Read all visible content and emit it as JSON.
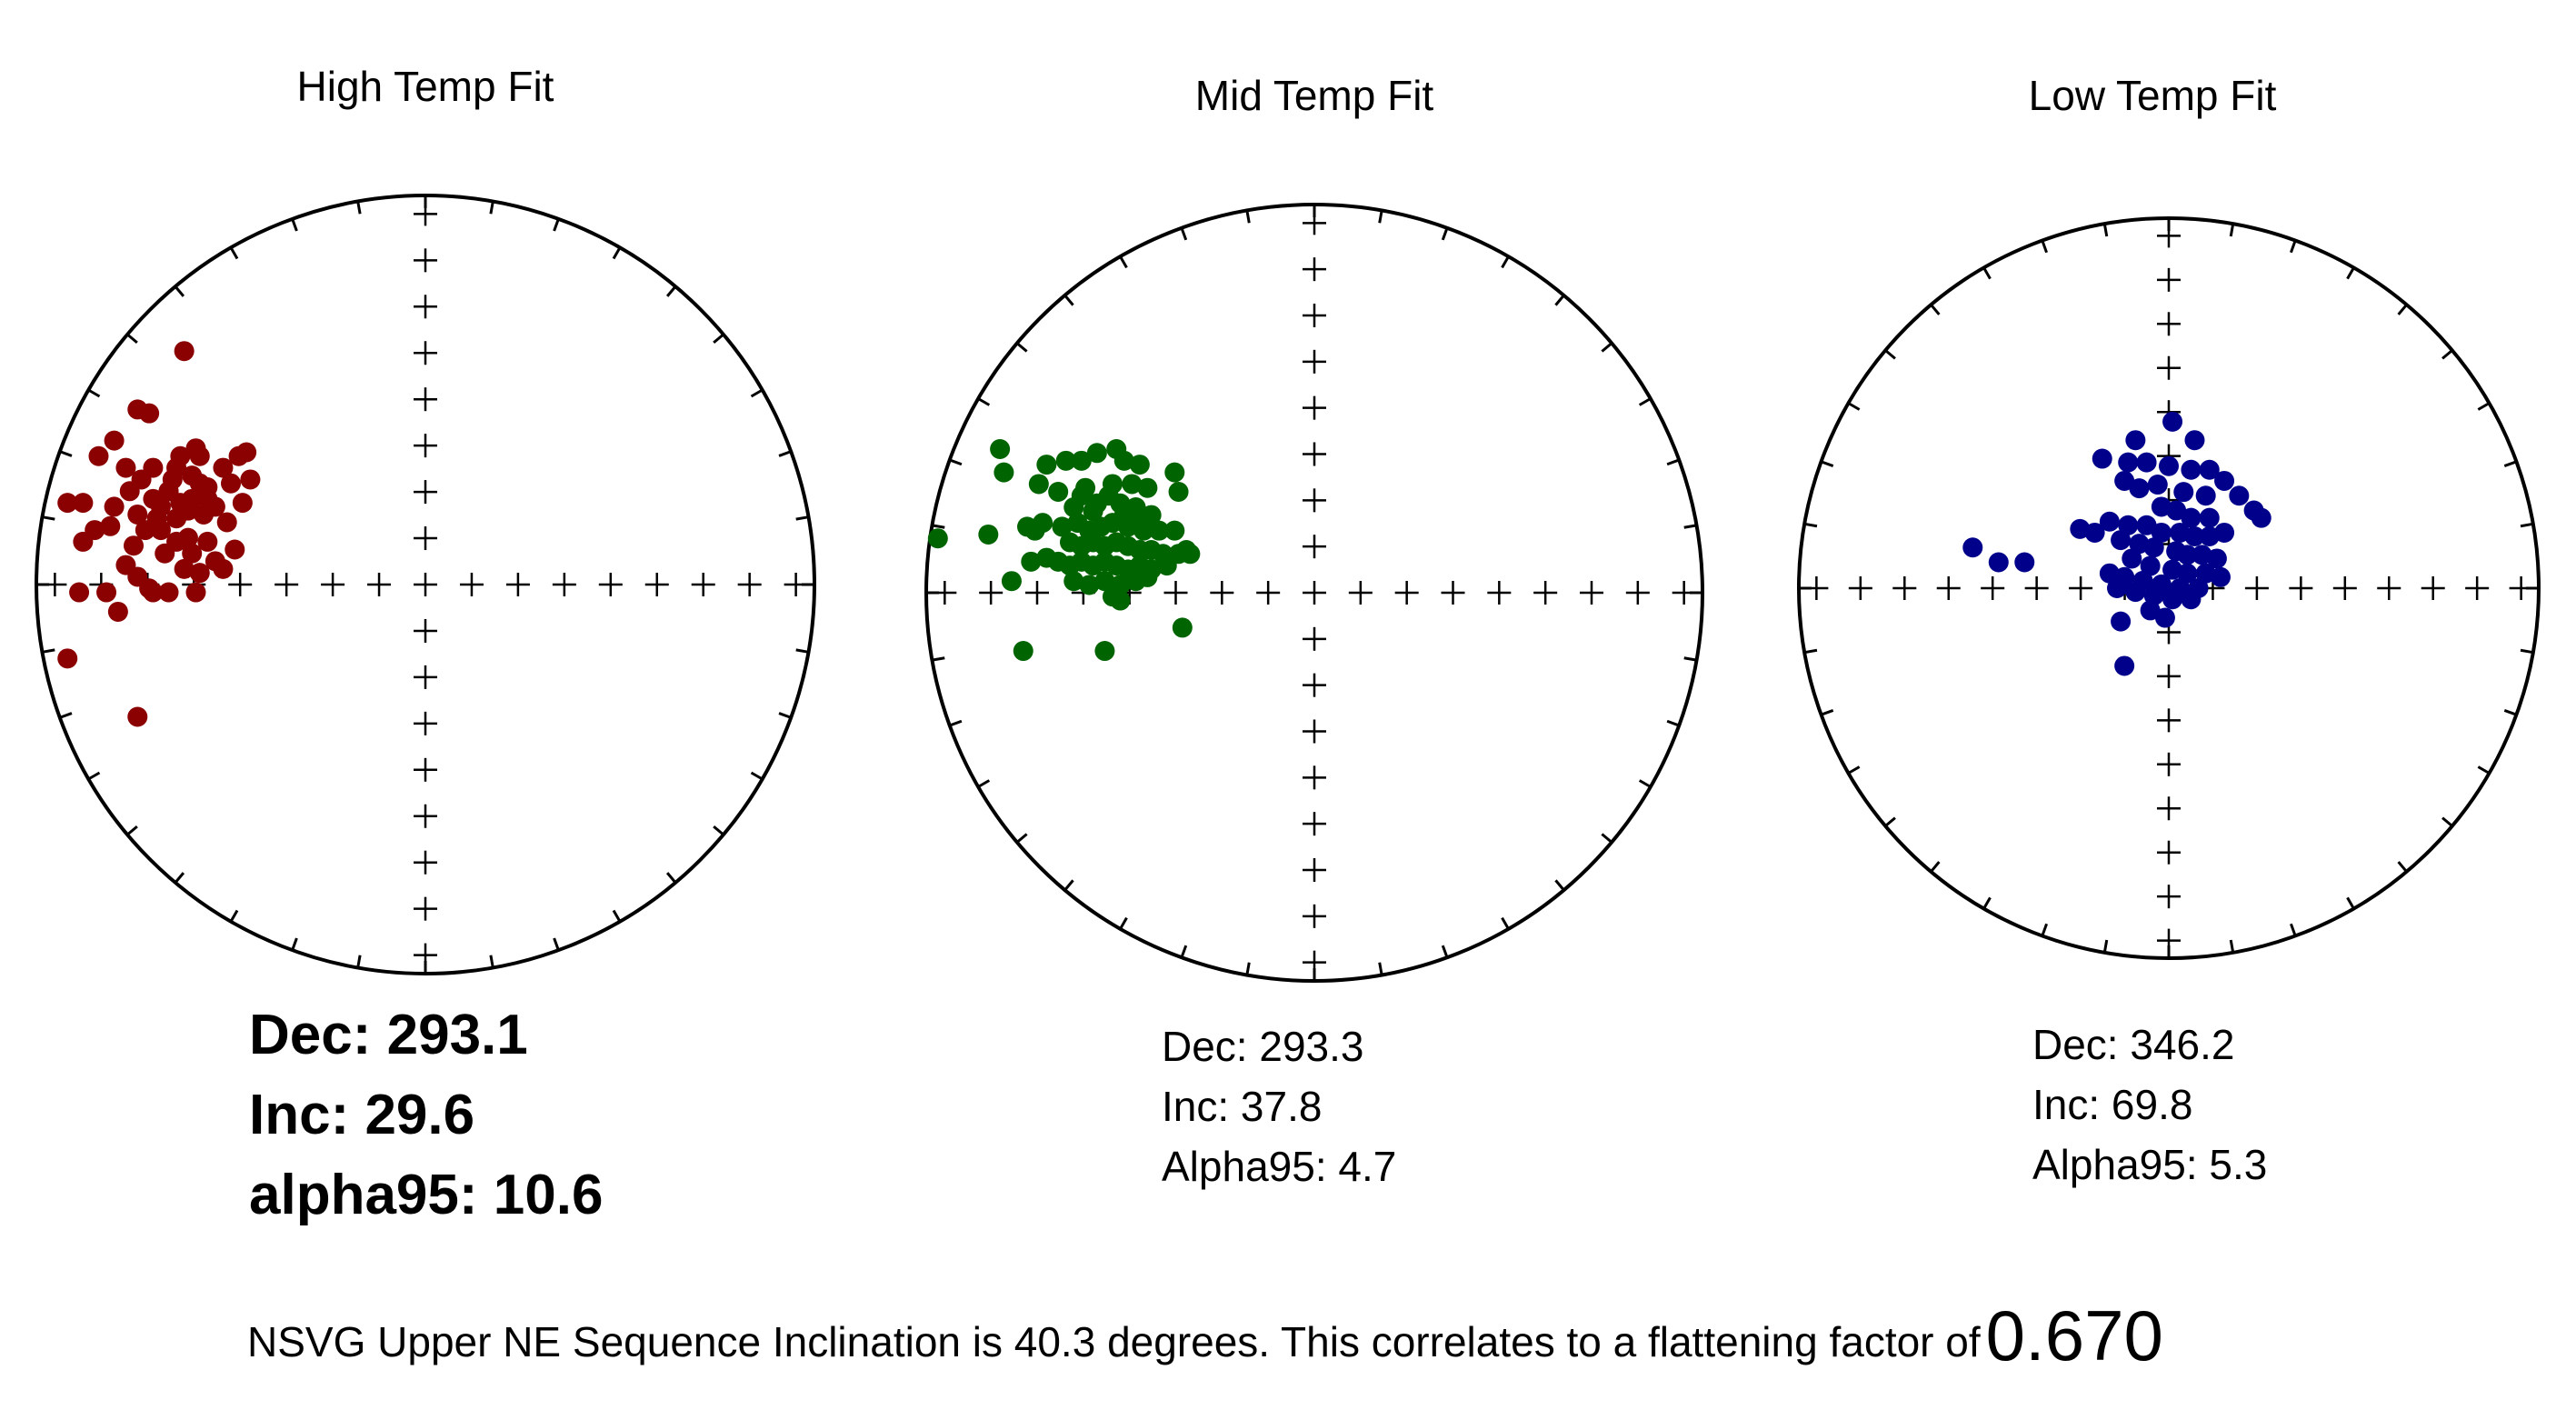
{
  "chart_data": [
    {
      "type": "scatter",
      "projection": "equal-area stereonet",
      "title": "High Temp Fit",
      "color": "#8B0000",
      "stats": {
        "dec_label": "Dec: 293.1",
        "inc_label": "Inc: 29.6",
        "alpha_label": "alpha95: 10.6"
      },
      "points": [
        [
          -0.62,
          0.6
        ],
        [
          -0.74,
          0.45
        ],
        [
          -0.71,
          0.44
        ],
        [
          -0.8,
          0.37
        ],
        [
          -0.84,
          0.33
        ],
        [
          -0.63,
          0.33
        ],
        [
          -0.58,
          0.33
        ],
        [
          -0.59,
          0.35
        ],
        [
          -0.58,
          0.26
        ],
        [
          -0.6,
          0.28
        ],
        [
          -0.65,
          0.27
        ],
        [
          -0.52,
          0.3
        ],
        [
          -0.56,
          0.25
        ],
        [
          -0.5,
          0.26
        ],
        [
          -0.48,
          0.33
        ],
        [
          -0.46,
          0.34
        ],
        [
          -0.45,
          0.27
        ],
        [
          -0.47,
          0.21
        ],
        [
          -0.92,
          0.21
        ],
        [
          -0.88,
          0.21
        ],
        [
          -0.76,
          0.24
        ],
        [
          -0.8,
          0.2
        ],
        [
          -0.7,
          0.22
        ],
        [
          -0.73,
          0.27
        ],
        [
          -0.77,
          0.3
        ],
        [
          -0.7,
          0.3
        ],
        [
          -0.66,
          0.24
        ],
        [
          -0.63,
          0.21
        ],
        [
          -0.68,
          0.2
        ],
        [
          -0.72,
          0.14
        ],
        [
          -0.75,
          0.1
        ],
        [
          -0.81,
          0.15
        ],
        [
          -0.85,
          0.14
        ],
        [
          -0.88,
          0.11
        ],
        [
          -0.77,
          0.05
        ],
        [
          -0.74,
          0.02
        ],
        [
          -0.67,
          0.08
        ],
        [
          -0.68,
          0.14
        ],
        [
          -0.64,
          0.17
        ],
        [
          -0.61,
          0.19
        ],
        [
          -0.57,
          0.18
        ],
        [
          -0.54,
          0.2
        ],
        [
          -0.51,
          0.16
        ],
        [
          -0.56,
          0.11
        ],
        [
          -0.6,
          0.08
        ],
        [
          -0.64,
          0.11
        ],
        [
          -0.62,
          0.04
        ],
        [
          -0.58,
          0.03
        ],
        [
          -0.54,
          0.06
        ],
        [
          -0.49,
          0.09
        ],
        [
          -0.52,
          0.04
        ],
        [
          -0.59,
          -0.02
        ],
        [
          -0.66,
          -0.02
        ],
        [
          -0.71,
          -0.01
        ],
        [
          -0.82,
          -0.02
        ],
        [
          -0.89,
          -0.02
        ],
        [
          -0.79,
          -0.07
        ],
        [
          -0.7,
          -0.02
        ],
        [
          -0.66,
          0.24
        ],
        [
          -0.6,
          0.22
        ],
        [
          -0.64,
          0.3
        ],
        [
          -0.56,
          0.22
        ],
        [
          -0.69,
          0.17
        ],
        [
          -0.74,
          0.18
        ],
        [
          -0.61,
          0.12
        ],
        [
          -0.92,
          -0.19
        ],
        [
          -0.74,
          -0.34
        ]
      ]
    },
    {
      "type": "scatter",
      "projection": "equal-area stereonet",
      "title": "Mid Temp Fit",
      "color": "#006400",
      "stats": {
        "dec_label": "Dec: 293.3",
        "inc_label": "Inc: 37.8",
        "alpha_label": "Alpha95: 4.7"
      },
      "points": [
        [
          -0.81,
          0.37
        ],
        [
          -0.8,
          0.31
        ],
        [
          -0.69,
          0.33
        ],
        [
          -0.64,
          0.34
        ],
        [
          -0.6,
          0.34
        ],
        [
          -0.56,
          0.36
        ],
        [
          -0.51,
          0.37
        ],
        [
          -0.49,
          0.34
        ],
        [
          -0.45,
          0.33
        ],
        [
          -0.36,
          0.31
        ],
        [
          -0.35,
          0.26
        ],
        [
          -0.71,
          0.28
        ],
        [
          -0.66,
          0.26
        ],
        [
          -0.59,
          0.27
        ],
        [
          -0.52,
          0.28
        ],
        [
          -0.47,
          0.28
        ],
        [
          -0.43,
          0.27
        ],
        [
          -0.62,
          0.22
        ],
        [
          -0.56,
          0.23
        ],
        [
          -0.5,
          0.23
        ],
        [
          -0.46,
          0.22
        ],
        [
          -0.42,
          0.2
        ],
        [
          -0.65,
          0.17
        ],
        [
          -0.61,
          0.18
        ],
        [
          -0.58,
          0.16
        ],
        [
          -0.55,
          0.17
        ],
        [
          -0.52,
          0.18
        ],
        [
          -0.48,
          0.17
        ],
        [
          -0.44,
          0.16
        ],
        [
          -0.4,
          0.16
        ],
        [
          -0.36,
          0.16
        ],
        [
          -0.33,
          0.11
        ],
        [
          -0.35,
          0.1
        ],
        [
          -0.32,
          0.1
        ],
        [
          -0.7,
          0.18
        ],
        [
          -0.72,
          0.16
        ],
        [
          -0.74,
          0.17
        ],
        [
          -0.84,
          0.15
        ],
        [
          -0.97,
          0.14
        ],
        [
          -0.63,
          0.13
        ],
        [
          -0.6,
          0.12
        ],
        [
          -0.57,
          0.13
        ],
        [
          -0.54,
          0.12
        ],
        [
          -0.51,
          0.13
        ],
        [
          -0.48,
          0.12
        ],
        [
          -0.45,
          0.11
        ],
        [
          -0.42,
          0.11
        ],
        [
          -0.39,
          0.1
        ],
        [
          -0.69,
          0.09
        ],
        [
          -0.66,
          0.08
        ],
        [
          -0.63,
          0.07
        ],
        [
          -0.6,
          0.08
        ],
        [
          -0.57,
          0.07
        ],
        [
          -0.54,
          0.08
        ],
        [
          -0.51,
          0.07
        ],
        [
          -0.48,
          0.06
        ],
        [
          -0.45,
          0.07
        ],
        [
          -0.42,
          0.06
        ],
        [
          -0.38,
          0.07
        ],
        [
          -0.73,
          0.08
        ],
        [
          -0.62,
          0.03
        ],
        [
          -0.58,
          0.02
        ],
        [
          -0.54,
          0.03
        ],
        [
          -0.5,
          0.02
        ],
        [
          -0.46,
          0.03
        ],
        [
          -0.43,
          0.04
        ],
        [
          -0.52,
          -0.01
        ],
        [
          -0.5,
          -0.02
        ],
        [
          -0.57,
          0.21
        ],
        [
          -0.6,
          0.25
        ],
        [
          -0.53,
          0.25
        ],
        [
          -0.49,
          0.2
        ],
        [
          -0.46,
          0.19
        ],
        [
          -0.78,
          0.03
        ],
        [
          -0.34,
          -0.09
        ],
        [
          -0.75,
          -0.15
        ],
        [
          -0.54,
          -0.15
        ]
      ]
    },
    {
      "type": "scatter",
      "projection": "equal-area stereonet",
      "title": "Low Temp Fit",
      "color": "#00008B",
      "stats": {
        "dec_label": "Dec: 346.2",
        "inc_label": "Inc: 69.8",
        "alpha_label": "Alpha95: 5.3"
      },
      "points": [
        [
          -0.09,
          0.4
        ],
        [
          0.07,
          0.4
        ],
        [
          -0.18,
          0.35
        ],
        [
          -0.11,
          0.34
        ],
        [
          -0.06,
          0.34
        ],
        [
          0.0,
          0.33
        ],
        [
          0.06,
          0.32
        ],
        [
          0.11,
          0.32
        ],
        [
          -0.12,
          0.29
        ],
        [
          -0.08,
          0.27
        ],
        [
          -0.03,
          0.28
        ],
        [
          0.04,
          0.26
        ],
        [
          0.1,
          0.25
        ],
        [
          0.15,
          0.29
        ],
        [
          0.19,
          0.25
        ],
        [
          0.23,
          0.21
        ],
        [
          0.25,
          0.19
        ],
        [
          -0.02,
          0.22
        ],
        [
          0.02,
          0.21
        ],
        [
          0.06,
          0.19
        ],
        [
          0.11,
          0.19
        ],
        [
          -0.16,
          0.18
        ],
        [
          -0.11,
          0.17
        ],
        [
          -0.06,
          0.17
        ],
        [
          -0.02,
          0.15
        ],
        [
          0.03,
          0.15
        ],
        [
          0.07,
          0.14
        ],
        [
          0.11,
          0.14
        ],
        [
          0.15,
          0.15
        ],
        [
          -0.24,
          0.16
        ],
        [
          -0.2,
          0.15
        ],
        [
          -0.13,
          0.13
        ],
        [
          -0.08,
          0.12
        ],
        [
          -0.04,
          0.11
        ],
        [
          0.02,
          0.1
        ],
        [
          0.05,
          0.09
        ],
        [
          0.09,
          0.09
        ],
        [
          0.13,
          0.08
        ],
        [
          -0.1,
          0.08
        ],
        [
          -0.05,
          0.06
        ],
        [
          0.01,
          0.05
        ],
        [
          0.05,
          0.04
        ],
        [
          0.1,
          0.04
        ],
        [
          0.14,
          0.03
        ],
        [
          -0.16,
          0.04
        ],
        [
          -0.12,
          0.03
        ],
        [
          -0.07,
          0.02
        ],
        [
          -0.02,
          0.01
        ],
        [
          0.03,
          0.0
        ],
        [
          0.08,
          0.0
        ],
        [
          -0.14,
          0.0
        ],
        [
          -0.09,
          -0.01
        ],
        [
          -0.04,
          -0.02
        ],
        [
          0.01,
          -0.03
        ],
        [
          0.06,
          -0.03
        ],
        [
          -0.05,
          -0.06
        ],
        [
          -0.01,
          -0.08
        ],
        [
          -0.13,
          -0.09
        ],
        [
          -0.53,
          0.11
        ],
        [
          -0.46,
          0.07
        ],
        [
          -0.39,
          0.07
        ],
        [
          0.01,
          0.45
        ],
        [
          -0.12,
          -0.21
        ]
      ]
    }
  ],
  "footer": {
    "text": "NSVG Upper NE Sequence Inclination is 40.3 degrees. This correlates to a flattening factor of",
    "value": "0.670"
  }
}
